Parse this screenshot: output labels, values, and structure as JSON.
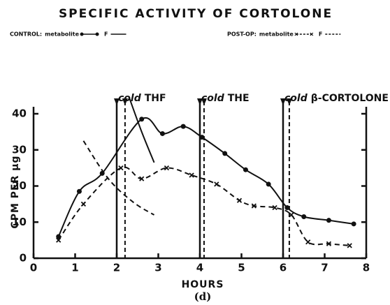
{
  "chart_data": {
    "type": "line",
    "title": "SPECIFIC ACTIVITY OF CORTOLONE",
    "xlabel": "HOURS",
    "ylabel": "CPM PER µg",
    "caption": "(d)",
    "xlim": [
      0,
      8
    ],
    "xticks": [
      0,
      1,
      2,
      3,
      4,
      5,
      6,
      7,
      8
    ],
    "ylim": [
      0,
      40
    ],
    "yticks": [
      0,
      10,
      20,
      30,
      40
    ],
    "series": [
      {
        "group": "CONTROL:",
        "name": "metabolite",
        "color": "#111",
        "marker": "circle",
        "dashed": false,
        "x": [
          0.6,
          1.1,
          1.65,
          2.6,
          3.1,
          3.6,
          4.05,
          4.6,
          5.1,
          5.65,
          6.1,
          6.5,
          7.1,
          7.7
        ],
        "values": [
          6,
          18.5,
          23.5,
          38.5,
          34.5,
          36.5,
          33.5,
          29,
          24.5,
          20.5,
          14,
          11.5,
          10.5,
          9.5
        ]
      },
      {
        "group": "CONTROL:",
        "name": "F",
        "color": "#111",
        "marker": "none",
        "dashed": false,
        "x": [
          2.3,
          2.6,
          2.9
        ],
        "values": [
          44.5,
          35,
          26.5
        ]
      },
      {
        "group": "POST-OP:",
        "name": "metabolite",
        "color": "#111",
        "marker": "x",
        "dashed": true,
        "x": [
          0.6,
          1.2,
          2.1,
          2.6,
          3.2,
          3.8,
          4.4,
          4.95,
          5.3,
          5.8,
          6.2,
          6.6,
          7.1,
          7.6
        ],
        "values": [
          5,
          15,
          25,
          22,
          25,
          23,
          20.5,
          16,
          14.5,
          14,
          12,
          4.5,
          4,
          3.5
        ]
      },
      {
        "group": "POST-OP:",
        "name": "F",
        "color": "#111",
        "marker": "none",
        "dashed": true,
        "x": [
          1.2,
          1.8,
          2.4,
          2.9
        ],
        "values": [
          32.5,
          22,
          15.5,
          12
        ]
      }
    ],
    "events": [
      {
        "italic": "cold",
        "label": "THF",
        "x": 2,
        "x_post": 2.2
      },
      {
        "italic": "cold",
        "label": "THE",
        "x": 4,
        "x_post": 4.1
      },
      {
        "italic": "cold",
        "label": "β-CORTOLONE",
        "x": 6,
        "x_post": 6.15
      }
    ]
  }
}
